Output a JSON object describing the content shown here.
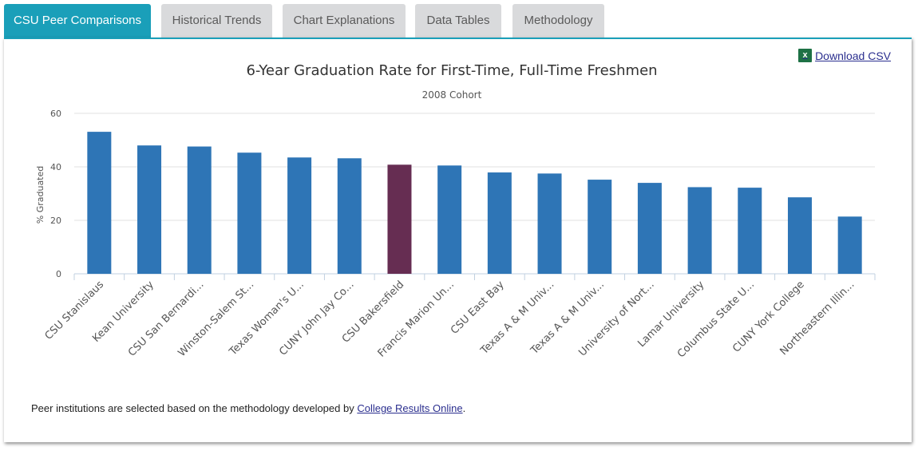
{
  "tabs": [
    {
      "label": "CSU Peer Comparisons",
      "active": true
    },
    {
      "label": "Historical Trends",
      "active": false
    },
    {
      "label": "Chart Explanations",
      "active": false
    },
    {
      "label": "Data Tables",
      "active": false
    },
    {
      "label": "Methodology",
      "active": false
    }
  ],
  "download": {
    "label": "Download CSV",
    "icon": "excel-icon",
    "icon_glyph": "x"
  },
  "colors": {
    "accent": "#1a9fb9",
    "bar": "#2e75b6",
    "highlight": "#662d52"
  },
  "footnote": {
    "text": "Peer institutions are selected based on the methodology developed by ",
    "link": "College Results Online",
    "end": "."
  },
  "chart_data": {
    "type": "bar",
    "title": "6-Year Graduation Rate for First-Time, Full-Time Freshmen",
    "subtitle": "2008 Cohort",
    "xlabel": "",
    "ylabel": "% Graduated",
    "ylim": [
      0,
      60
    ],
    "yticks": [
      0,
      20,
      40,
      60
    ],
    "grid": true,
    "categories": [
      "CSU Stanislaus",
      "Kean University",
      "CSU San Bernardi...",
      "Winston-Salem St...",
      "Texas Woman's U...",
      "CUNY John Jay Co...",
      "CSU Bakersfield",
      "Francis Marion Un...",
      "CSU East Bay",
      "Texas A & M Univ...",
      "Texas A & M Univ...",
      "University of Nort...",
      "Lamar University",
      "Columbus State U...",
      "CUNY York College",
      "Northeastern Illin..."
    ],
    "values": [
      53.1,
      48.0,
      47.6,
      45.3,
      43.5,
      43.2,
      40.8,
      40.5,
      37.9,
      37.5,
      35.2,
      34.0,
      32.4,
      32.2,
      28.6,
      21.4
    ],
    "highlight_category": "CSU Bakersfield"
  }
}
